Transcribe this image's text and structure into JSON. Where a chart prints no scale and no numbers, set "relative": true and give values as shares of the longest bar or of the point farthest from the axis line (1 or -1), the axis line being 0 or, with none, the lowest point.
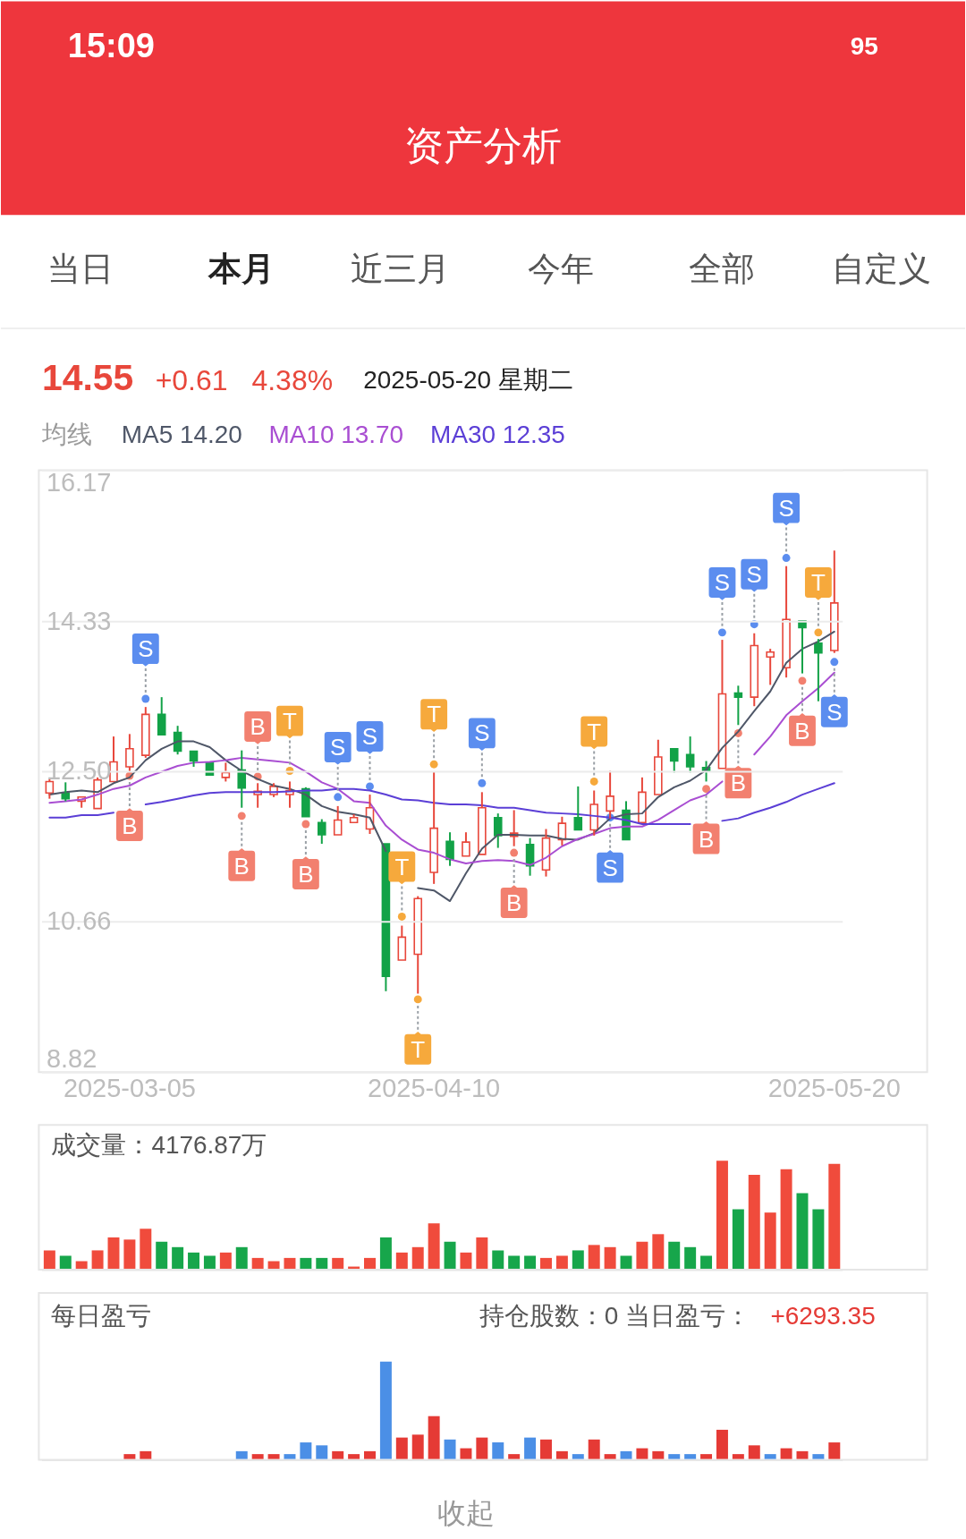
{
  "chart_data": [
    {
      "type": "candlestick",
      "title": "资产分析",
      "annotations": [
        "15:09",
        "95",
        "当日",
        "本月",
        "近三月",
        "今年",
        "全部",
        "自定义",
        "14.55",
        "+0.61",
        "4.38%",
        "2025-05-20 星期二"
      ],
      "legend_title": "均线",
      "legend": "top left",
      "grid": "y",
      "ylim": [
        8.82,
        16.17
      ],
      "yticks": [
        8.82,
        10.66,
        {
          "value": 12.5,
          "label": "12.50"
        },
        14.33,
        16.17
      ],
      "categories": [
        null,
        null,
        null,
        null,
        null,
        "2025-03-05",
        null,
        null,
        null,
        null,
        null,
        null,
        null,
        null,
        null,
        null,
        null,
        null,
        null,
        null,
        null,
        null,
        null,
        null,
        "2025-04-10",
        null,
        null,
        null,
        null,
        null,
        null,
        null,
        null,
        null,
        null,
        null,
        null,
        null,
        null,
        null,
        null,
        null,
        null,
        null,
        null,
        null,
        null,
        null,
        null,
        "2025-05-20"
      ],
      "ohlc": [
        [
          12.23,
          12.4,
          12.16,
          12.37
        ],
        [
          12.23,
          12.36,
          12.13,
          12.16
        ],
        [
          12.13,
          12.18,
          12.05,
          12.18
        ],
        [
          12.04,
          12.42,
          12.04,
          12.39
        ],
        [
          12.37,
          12.92,
          12.37,
          12.61
        ],
        [
          12.55,
          12.95,
          12.49,
          12.77
        ],
        [
          12.69,
          13.28,
          12.66,
          13.19
        ],
        [
          13.19,
          13.4,
          12.94,
          12.94
        ],
        [
          12.97,
          13.05,
          12.7,
          12.74
        ],
        [
          12.74,
          12.74,
          12.55,
          12.62
        ],
        [
          12.6,
          12.6,
          12.45,
          12.45
        ],
        [
          12.42,
          12.6,
          12.37,
          12.48
        ],
        [
          12.51,
          12.75,
          12.05,
          12.29
        ],
        [
          12.21,
          12.35,
          12.05,
          12.25
        ],
        [
          12.21,
          12.35,
          12.18,
          12.31
        ],
        [
          12.21,
          12.37,
          12.05,
          12.26
        ],
        [
          12.28,
          12.3,
          11.94,
          11.94
        ],
        [
          11.87,
          11.91,
          11.61,
          11.72
        ],
        [
          11.72,
          12.07,
          11.72,
          11.9
        ],
        [
          11.87,
          11.97,
          11.87,
          11.93
        ],
        [
          11.79,
          12.21,
          11.73,
          12.05
        ],
        [
          11.61,
          11.61,
          9.81,
          9.99
        ],
        [
          10.19,
          10.61,
          10.19,
          10.47
        ],
        [
          10.26,
          10.97,
          9.78,
          10.94
        ],
        [
          11.26,
          12.49,
          11.12,
          11.8
        ],
        [
          11.64,
          11.75,
          11.34,
          11.42
        ],
        [
          11.46,
          11.75,
          11.46,
          11.63
        ],
        [
          11.48,
          12.24,
          11.48,
          12.05
        ],
        [
          11.93,
          11.98,
          11.56,
          11.71
        ],
        [
          11.7,
          12.02,
          11.58,
          11.74
        ],
        [
          11.6,
          11.68,
          11.22,
          11.34
        ],
        [
          11.29,
          11.79,
          11.21,
          11.68
        ],
        [
          11.66,
          11.94,
          11.59,
          11.86
        ],
        [
          11.93,
          12.31,
          11.78,
          11.78
        ],
        [
          11.78,
          12.26,
          11.71,
          12.09
        ],
        [
          12.01,
          12.5,
          11.92,
          12.19
        ],
        [
          12.02,
          12.13,
          11.66,
          11.66
        ],
        [
          11.87,
          12.42,
          11.87,
          12.24
        ],
        [
          12.21,
          12.88,
          12.21,
          12.67
        ],
        [
          12.77,
          12.77,
          12.48,
          12.62
        ],
        [
          12.7,
          12.92,
          12.48,
          12.55
        ],
        [
          12.54,
          12.62,
          12.37,
          12.5
        ],
        [
          12.53,
          14.1,
          12.53,
          13.44
        ],
        [
          13.45,
          13.54,
          13.06,
          13.4
        ],
        [
          13.4,
          14.18,
          13.29,
          14.03
        ],
        [
          13.89,
          13.99,
          13.55,
          13.95
        ],
        [
          13.76,
          15.0,
          13.64,
          14.35
        ],
        [
          14.33,
          14.33,
          13.69,
          14.25
        ],
        [
          14.06,
          14.11,
          13.35,
          13.94
        ],
        [
          13.97,
          15.19,
          13.94,
          14.55
        ]
      ],
      "colors": [
        "#e8473b",
        "#12a247",
        "#e8473b",
        "#e8473b",
        "#e8473b",
        "#e8473b",
        "#e8473b",
        "#12a247",
        "#12a247",
        "#12a247",
        "#12a247",
        "#e8473b",
        "#12a247",
        "#e8473b",
        "#e8473b",
        "#e8473b",
        "#12a247",
        "#12a247",
        "#e8473b",
        "#e8473b",
        "#e8473b",
        "#12a247",
        "#e8473b",
        "#e8473b",
        "#e8473b",
        "#12a247",
        "#e8473b",
        "#e8473b",
        "#12a247",
        "#e8473b",
        "#12a247",
        "#e8473b",
        "#e8473b",
        "#12a247",
        "#e8473b",
        "#e8473b",
        "#12a247",
        "#e8473b",
        "#e8473b",
        "#12a247",
        "#12a247",
        "#12a247",
        "#e8473b",
        "#12a247",
        "#e8473b",
        "#e8473b",
        "#e8473b",
        "#12a247",
        "#12a247",
        "#e8473b"
      ],
      "series": [
        {
          "type": "line",
          "name": "MA5 14.20",
          "color": "#4f5768",
          "line_style": "solid",
          "values": [
            12.21,
            12.24,
            12.26,
            12.24,
            12.35,
            12.42,
            12.63,
            12.77,
            12.86,
            12.86,
            12.79,
            12.63,
            12.5,
            12.4,
            12.32,
            12.28,
            12.21,
            12.07,
            12.0,
            11.97,
            11.93,
            11.52,
            null,
            11.07,
            11.04,
            10.91,
            11.25,
            11.55,
            11.72,
            11.72,
            11.71,
            11.71,
            11.67,
            11.66,
            11.74,
            11.92,
            11.97,
            11.98,
            12.18,
            12.3,
            12.38,
            12.51,
            12.78,
            12.98,
            13.23,
            13.47,
            13.82,
            13.99,
            14.08,
            14.2
          ]
        },
        {
          "type": "line",
          "name": "MA10 13.70",
          "color": "#a94ed2",
          "line_style": "solid",
          "values": [
            12.11,
            12.13,
            12.15,
            12.21,
            12.28,
            12.32,
            12.42,
            12.49,
            12.56,
            12.6,
            12.61,
            12.63,
            12.66,
            12.64,
            12.62,
            12.6,
            12.49,
            12.36,
            12.28,
            12.13,
            12.11,
            11.83,
            11.66,
            11.54,
            11.5,
            11.42,
            11.37,
            11.4,
            11.41,
            11.4,
            11.35,
            11.44,
            11.58,
            11.67,
            11.73,
            11.8,
            11.82,
            11.82,
            11.9,
            12.02,
            12.14,
            12.21,
            12.37,
            null,
            12.7,
            12.92,
            13.18,
            13.35,
            13.51,
            13.7
          ]
        },
        {
          "type": "line",
          "name": "MA30 12.35",
          "color": "#5b3fd6",
          "line_style": "solid",
          "values": [
            11.93,
            11.93,
            11.96,
            11.96,
            11.99,
            null,
            12.09,
            12.12,
            12.16,
            12.2,
            12.23,
            12.24,
            12.24,
            12.24,
            12.24,
            12.25,
            12.26,
            12.26,
            12.28,
            12.28,
            12.26,
            12.21,
            12.15,
            12.14,
            12.11,
            12.09,
            12.09,
            12.08,
            12.05,
            12.05,
            12.02,
            11.99,
            11.98,
            11.97,
            11.95,
            11.93,
            11.9,
            11.85,
            11.85,
            11.85,
            11.85,
            null,
            11.89,
            11.92,
            11.99,
            12.05,
            12.12,
            12.21,
            12.28,
            12.35
          ]
        },
        {
          "type": "scatter",
          "color": "#f2806f",
          "marker": "circle",
          "values": [
            null,
            null,
            null,
            null,
            null,
            12.44,
            null,
            null,
            null,
            null,
            null,
            null,
            11.95,
            12.43,
            null,
            null,
            11.85,
            null,
            null,
            null,
            null,
            null,
            null,
            null,
            null,
            null,
            null,
            null,
            null,
            11.5,
            null,
            null,
            null,
            null,
            null,
            null,
            null,
            null,
            null,
            null,
            null,
            12.28,
            null,
            12.96,
            null,
            null,
            null,
            13.6,
            null,
            null
          ],
          "value_labels": [
            null,
            null,
            null,
            null,
            null,
            "B",
            null,
            null,
            null,
            null,
            null,
            null,
            "B",
            "B",
            null,
            null,
            "B",
            null,
            null,
            null,
            null,
            null,
            null,
            null,
            null,
            null,
            null,
            null,
            null,
            "B",
            null,
            null,
            null,
            null,
            null,
            null,
            null,
            null,
            null,
            null,
            null,
            "B",
            null,
            "B",
            null,
            null,
            null,
            "B",
            null,
            null
          ]
        },
        {
          "type": "scatter",
          "color": "#5b8def",
          "marker": "circle",
          "values": [
            null,
            null,
            null,
            null,
            null,
            null,
            13.38,
            null,
            null,
            null,
            null,
            null,
            null,
            null,
            null,
            null,
            null,
            null,
            12.18,
            null,
            12.31,
            null,
            null,
            null,
            null,
            null,
            null,
            12.35,
            null,
            null,
            null,
            null,
            null,
            null,
            null,
            11.93,
            null,
            null,
            null,
            null,
            null,
            null,
            14.19,
            null,
            14.29,
            null,
            15.1,
            null,
            null,
            13.83
          ],
          "value_labels": [
            null,
            null,
            null,
            null,
            null,
            null,
            "S",
            null,
            null,
            null,
            null,
            null,
            null,
            null,
            null,
            null,
            null,
            null,
            "S",
            null,
            "S",
            null,
            null,
            null,
            null,
            null,
            null,
            "S",
            null,
            null,
            null,
            null,
            null,
            null,
            null,
            "S",
            null,
            null,
            null,
            null,
            null,
            null,
            "S",
            null,
            "S",
            null,
            "S",
            null,
            null,
            "S"
          ]
        },
        {
          "type": "scatter",
          "color": "#f6a93c",
          "marker": "circle",
          "values": [
            null,
            null,
            null,
            null,
            null,
            null,
            null,
            null,
            null,
            null,
            null,
            null,
            null,
            null,
            null,
            12.5,
            null,
            null,
            null,
            null,
            null,
            null,
            10.72,
            9.71,
            12.58,
            null,
            null,
            null,
            null,
            null,
            null,
            null,
            null,
            null,
            12.37,
            null,
            null,
            null,
            null,
            null,
            null,
            null,
            null,
            null,
            null,
            null,
            null,
            null,
            14.19,
            null
          ],
          "value_labels": [
            null,
            null,
            null,
            null,
            null,
            null,
            null,
            null,
            null,
            null,
            null,
            null,
            null,
            null,
            null,
            "T",
            null,
            null,
            null,
            null,
            null,
            null,
            "T",
            "T",
            "T",
            null,
            null,
            null,
            null,
            null,
            null,
            null,
            null,
            null,
            "T",
            null,
            null,
            null,
            null,
            null,
            null,
            null,
            null,
            null,
            null,
            null,
            null,
            null,
            "T",
            null
          ]
        }
      ]
    },
    {
      "type": "bar",
      "title": "成交量：4176.87万",
      "relative": true,
      "categories": [
        null,
        null,
        null,
        null,
        null,
        null,
        null,
        null,
        null,
        null,
        null,
        null,
        null,
        null,
        null,
        null,
        null,
        null,
        null,
        null,
        null,
        null,
        null,
        null,
        null,
        null,
        null,
        null,
        null,
        null,
        null,
        null,
        null,
        null,
        null,
        null,
        null,
        null,
        null,
        null,
        null,
        null,
        null,
        null,
        null,
        null,
        null,
        null,
        null,
        null
      ],
      "values": [
        0.17,
        0.12,
        0.07,
        0.17,
        0.29,
        0.27,
        0.37,
        0.25,
        0.2,
        0.15,
        0.12,
        0.15,
        0.2,
        0.1,
        0.07,
        0.1,
        0.1,
        0.1,
        0.1,
        0.02,
        0.1,
        0.29,
        0.15,
        0.2,
        0.42,
        0.25,
        0.15,
        0.29,
        0.17,
        0.12,
        0.12,
        0.1,
        0.12,
        0.17,
        0.22,
        0.2,
        0.12,
        0.25,
        0.32,
        0.25,
        0.2,
        0.12,
        1,
        0.55,
        0.87,
        0.52,
        0.92,
        0.7,
        0.55,
        0.97
      ],
      "colors": [
        "#f04b3c",
        "#17a64b",
        "#f04b3c",
        "#f04b3c",
        "#f04b3c",
        "#f04b3c",
        "#f04b3c",
        "#17a64b",
        "#17a64b",
        "#17a64b",
        "#17a64b",
        "#f04b3c",
        "#17a64b",
        "#f04b3c",
        "#f04b3c",
        "#f04b3c",
        "#17a64b",
        "#17a64b",
        "#f04b3c",
        "#f04b3c",
        "#f04b3c",
        "#17a64b",
        "#f04b3c",
        "#f04b3c",
        "#f04b3c",
        "#17a64b",
        "#f04b3c",
        "#f04b3c",
        "#17a64b",
        "#17a64b",
        "#17a64b",
        "#f04b3c",
        "#f04b3c",
        "#17a64b",
        "#f04b3c",
        "#f04b3c",
        "#17a64b",
        "#f04b3c",
        "#f04b3c",
        "#17a64b",
        "#17a64b",
        "#17a64b",
        "#f04b3c",
        "#17a64b",
        "#f04b3c",
        "#f04b3c",
        "#f04b3c",
        "#17a64b",
        "#17a64b",
        "#f04b3c"
      ]
    },
    {
      "type": "bar",
      "title": "每日盈亏",
      "annotations": [
        "持仓股数：0 当日盈亏：",
        "+6293.35",
        "收起"
      ],
      "relative": true,
      "categories": [
        null,
        null,
        null,
        null,
        null,
        null,
        null,
        null,
        null,
        null,
        null,
        null,
        null,
        null,
        null,
        null,
        null,
        null,
        null,
        null,
        null,
        null,
        null,
        null,
        null,
        null,
        null,
        null,
        null,
        null,
        null,
        null,
        null,
        null,
        null,
        null,
        null,
        null,
        null,
        null,
        null,
        null,
        null,
        null,
        null,
        null,
        null,
        null,
        null,
        null
      ],
      "values": [
        null,
        null,
        null,
        null,
        null,
        0.05,
        0.08,
        null,
        null,
        null,
        null,
        null,
        0.08,
        0.05,
        0.05,
        0.05,
        0.17,
        0.14,
        0.08,
        0.05,
        0.08,
        1,
        0.22,
        0.25,
        0.44,
        0.2,
        0.11,
        0.22,
        0.17,
        0.05,
        0.22,
        0.2,
        0.08,
        0.05,
        0.2,
        0.05,
        0.08,
        0.11,
        0.08,
        0.05,
        0.05,
        0.05,
        0.3,
        0.05,
        0.14,
        0.05,
        0.11,
        0.08,
        0.05,
        0.17
      ],
      "colors": [
        null,
        null,
        null,
        null,
        null,
        "#e53a35",
        "#e53a35",
        null,
        null,
        null,
        null,
        null,
        "#4b8fe6",
        "#e53a35",
        "#e53a35",
        "#4b8fe6",
        "#4b8fe6",
        "#4b8fe6",
        "#e53a35",
        "#e53a35",
        "#e53a35",
        "#4b8fe6",
        "#e53a35",
        "#e53a35",
        "#e53a35",
        "#4b8fe6",
        "#e53a35",
        "#e53a35",
        "#4b8fe6",
        "#e53a35",
        "#4b8fe6",
        "#e53a35",
        "#e53a35",
        "#4b8fe6",
        "#e53a35",
        "#e53a35",
        "#4b8fe6",
        "#e53a35",
        "#e53a35",
        "#4b8fe6",
        "#4b8fe6",
        "#e53a35",
        "#e53a35",
        "#e53a35",
        "#e53a35",
        "#4b8fe6",
        "#e53a35",
        "#e53a35",
        "#4b8fe6",
        "#e53a35"
      ]
    }
  ]
}
